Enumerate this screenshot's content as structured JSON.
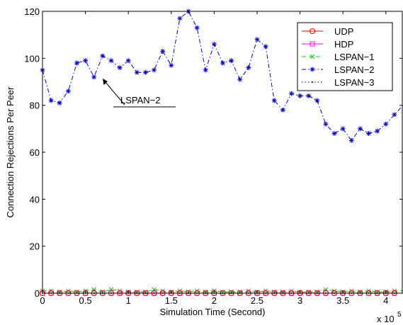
{
  "chart_data": {
    "type": "line",
    "xlabel": "Simulation Time (Second)",
    "ylabel": "Connection Rejections Per Peer",
    "x_multiplier_label": "x 10",
    "x_multiplier_exponent": "5",
    "xlim": [
      0,
      4.2
    ],
    "ylim": [
      0,
      120
    ],
    "xticks": [
      0,
      0.5,
      1,
      1.5,
      2,
      2.5,
      3,
      3.5,
      4
    ],
    "xtick_labels": [
      "0",
      "0.5",
      "1",
      "1.5",
      "2",
      "2.5",
      "3",
      "3.5",
      "4"
    ],
    "yticks": [
      0,
      20,
      40,
      60,
      80,
      100,
      120
    ],
    "ytick_labels": [
      "0",
      "20",
      "40",
      "60",
      "80",
      "100",
      "120"
    ],
    "grid": false,
    "legend_position": "top-right",
    "annotation": {
      "text": "LSPAN−2",
      "target_x": 0.7,
      "target_y": 98
    },
    "x": [
      0,
      0.1,
      0.2,
      0.3,
      0.4,
      0.5,
      0.6,
      0.7,
      0.8,
      0.9,
      1.0,
      1.1,
      1.2,
      1.3,
      1.4,
      1.5,
      1.6,
      1.7,
      1.8,
      1.9,
      2.0,
      2.1,
      2.2,
      2.3,
      2.4,
      2.5,
      2.6,
      2.7,
      2.8,
      2.9,
      3.0,
      3.1,
      3.2,
      3.3,
      3.4,
      3.5,
      3.6,
      3.7,
      3.8,
      3.9,
      4.0,
      4.1,
      4.2
    ],
    "series": [
      {
        "name": "UDP",
        "color": "#ff0000",
        "marker": "circle",
        "dash": "solid",
        "values": [
          0,
          0,
          0,
          0,
          0,
          0,
          0,
          0,
          0,
          0,
          0,
          0,
          0,
          0,
          0,
          0,
          0,
          0,
          0,
          0,
          0,
          0,
          0,
          0,
          0,
          0,
          0,
          0,
          0,
          0,
          0,
          0,
          0,
          0,
          0,
          0,
          0,
          0,
          0,
          0,
          0,
          0,
          0
        ]
      },
      {
        "name": "HDP",
        "color": "#ff00ff",
        "marker": "square",
        "dash": "solid",
        "values": [
          0,
          0,
          0,
          0,
          0,
          0,
          0,
          0,
          0,
          0,
          0,
          0,
          0,
          0,
          0,
          0,
          0,
          0,
          0,
          0,
          0,
          0,
          0,
          0,
          0,
          0,
          0,
          0,
          0,
          0,
          0,
          0,
          0,
          0,
          0,
          0,
          0,
          0,
          0,
          0,
          0,
          0,
          0
        ]
      },
      {
        "name": "LSPAN−1",
        "color": "#00cc00",
        "marker": "x",
        "dash": "dashed",
        "values": [
          1,
          1,
          0.5,
          1,
          0.5,
          1,
          1.5,
          0.5,
          1.5,
          1,
          0.5,
          0.5,
          0.5,
          1.5,
          1,
          0.5,
          1,
          0.5,
          1,
          0.5,
          1,
          0.5,
          0.5,
          0.5,
          1,
          0.5,
          1,
          0.5,
          0.5,
          1,
          0.5,
          0.5,
          0.5,
          1.5,
          1,
          0.5,
          1,
          0.5,
          1,
          0.5,
          0.5,
          1,
          1
        ]
      },
      {
        "name": "LSPAN−2",
        "color": "#0000cc",
        "marker": "star",
        "dash": "dashdot",
        "values": [
          95,
          82,
          81,
          86,
          98,
          99,
          92,
          101,
          99,
          96,
          99,
          94,
          94,
          95,
          103,
          97,
          117,
          120,
          113,
          95,
          106,
          98,
          99,
          91,
          96,
          108,
          105,
          82,
          78,
          85,
          84,
          84,
          82,
          72,
          68,
          70,
          65,
          70,
          68,
          69,
          72,
          76,
          80
        ]
      },
      {
        "name": "LSPAN−3",
        "color": "#000000",
        "marker": "dot",
        "dash": "dotted",
        "values": [
          0,
          0,
          0,
          0,
          0,
          0,
          0,
          0,
          0,
          0,
          0,
          0,
          0,
          0,
          0,
          0,
          0,
          0,
          0,
          0,
          0,
          0,
          0,
          0,
          0,
          0,
          0,
          0,
          0,
          0,
          0,
          0,
          0,
          0,
          0,
          0,
          0,
          0,
          0,
          0,
          0,
          0,
          0
        ]
      }
    ]
  }
}
